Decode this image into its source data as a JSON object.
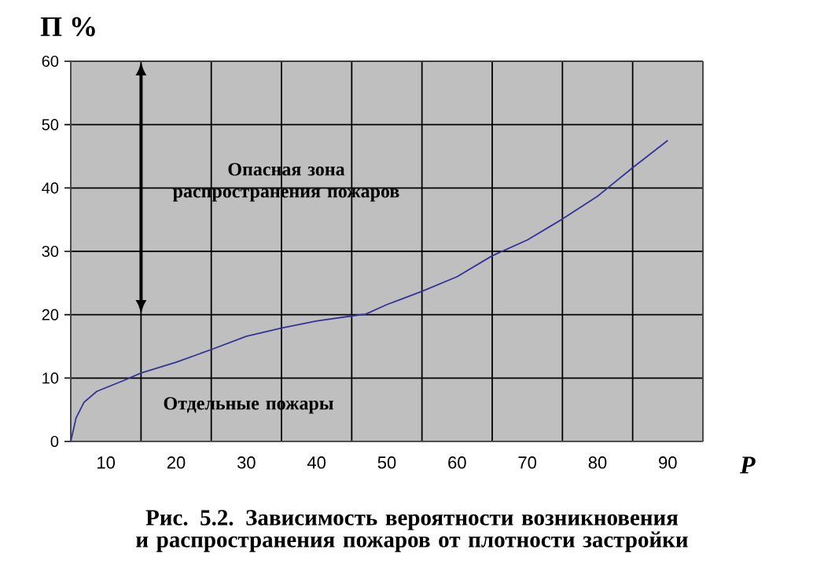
{
  "chart_data": {
    "type": "line",
    "xlabel": "P",
    "ylabel": "П %",
    "x": [
      5,
      5.75,
      6.9,
      8.7,
      12.5,
      15,
      20,
      25,
      30,
      35,
      40,
      45,
      47,
      50,
      55,
      60,
      65,
      70,
      75,
      80,
      85,
      90
    ],
    "series": [
      {
        "color": "#333399",
        "values": [
          0,
          3.7,
          6.2,
          7.9,
          9.6,
          10.8,
          12.5,
          14.5,
          16.6,
          17.9,
          19.0,
          19.8,
          20.1,
          21.6,
          23.7,
          26,
          29.3,
          31.8,
          35.1,
          38.7,
          43.2,
          47.5
        ]
      }
    ],
    "xlim": [
      5,
      95
    ],
    "ylim": [
      0,
      60
    ],
    "xticks": [
      10,
      20,
      30,
      40,
      50,
      60,
      70,
      80,
      90,
      {
        "value": 5,
        "label": null
      },
      {
        "value": 15,
        "label": null
      },
      {
        "value": 25,
        "label": null
      },
      {
        "value": 35,
        "label": null
      },
      {
        "value": 45,
        "label": null
      },
      {
        "value": 55,
        "label": null
      },
      {
        "value": 65,
        "label": null
      },
      {
        "value": 75,
        "label": null
      },
      {
        "value": 85,
        "label": null
      },
      {
        "value": 95,
        "label": null
      }
    ],
    "yticks": [
      0,
      10,
      20,
      30,
      40,
      50,
      60
    ],
    "grid": true,
    "marker": "none",
    "line_style": "solid",
    "annotations": [
      "Опасная зона распространения пожаров",
      "Отдельные пожары",
      "Рис. 5.2. Зависимость вероятности возникновения и распространения пожаров от плотности застройки"
    ]
  }
}
